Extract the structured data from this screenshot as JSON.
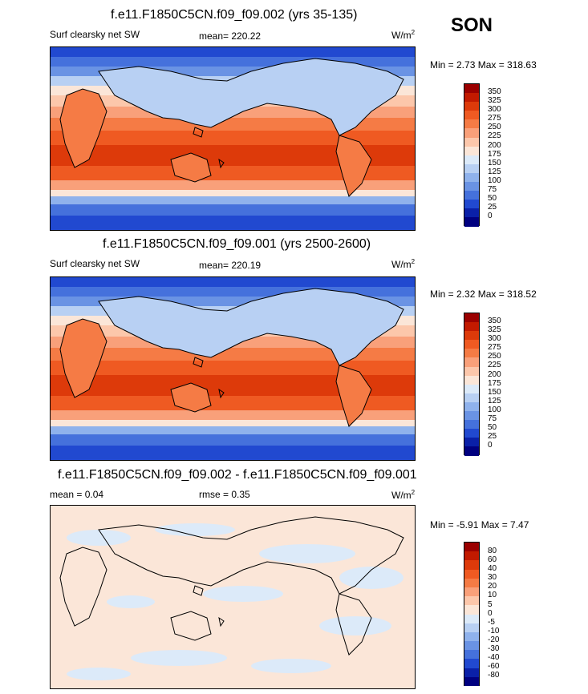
{
  "season": "SON",
  "panels": [
    {
      "title": "f.e11.F1850C5CN.f09_f09.002 (yrs 35-135)",
      "left_label": "Surf clearsky net SW",
      "mean_label": "mean= 220.22",
      "units": "W/m",
      "units_sup": "2",
      "minmax": "Min =  2.73 Max = 318.63",
      "levels": [
        "350",
        "325",
        "300",
        "275",
        "250",
        "225",
        "200",
        "175",
        "150",
        "125",
        "100",
        "75",
        "50",
        "25",
        "0"
      ],
      "colors": [
        "#9b0000",
        "#c21a00",
        "#dd3a0a",
        "#ef5a22",
        "#f57b45",
        "#f9a07a",
        "#fcc7ab",
        "#fbe6d8",
        "#dceaf9",
        "#b8d0f3",
        "#8fb2ec",
        "#6a93e4",
        "#4571dc",
        "#2149d0",
        "#0a20a8",
        "#000080"
      ]
    },
    {
      "title": "f.e11.F1850C5CN.f09_f09.001 (yrs 2500-2600)",
      "left_label": "Surf clearsky net SW",
      "mean_label": "mean= 220.19",
      "units": "W/m",
      "units_sup": "2",
      "minmax": "Min =  2.32 Max = 318.52",
      "levels": [
        "350",
        "325",
        "300",
        "275",
        "250",
        "225",
        "200",
        "175",
        "150",
        "125",
        "100",
        "75",
        "50",
        "25",
        "0"
      ],
      "colors": [
        "#9b0000",
        "#c21a00",
        "#dd3a0a",
        "#ef5a22",
        "#f57b45",
        "#f9a07a",
        "#fcc7ab",
        "#fbe6d8",
        "#dceaf9",
        "#b8d0f3",
        "#8fb2ec",
        "#6a93e4",
        "#4571dc",
        "#2149d0",
        "#0a20a8",
        "#000080"
      ]
    },
    {
      "title": "f.e11.F1850C5CN.f09_f09.002 - f.e11.F1850C5CN.f09_f09.001",
      "left_label": "mean =   0.04",
      "mean_label": "rmse =   0.35",
      "units": "W/m",
      "units_sup": "2",
      "minmax": "Min =  -5.91 Max =   7.47",
      "levels": [
        "80",
        "60",
        "40",
        "30",
        "20",
        "10",
        "5",
        "0",
        "-5",
        "-10",
        "-20",
        "-30",
        "-40",
        "-60",
        "-80"
      ],
      "colors": [
        "#9b0000",
        "#c21a00",
        "#dd3a0a",
        "#ef5a22",
        "#f57b45",
        "#f9a07a",
        "#fcc7ab",
        "#fbe6d8",
        "#dceaf9",
        "#b8d0f3",
        "#8fb2ec",
        "#6a93e4",
        "#4571dc",
        "#2149d0",
        "#0a20a8",
        "#000080"
      ]
    }
  ],
  "chart_data": [
    {
      "type": "heatmap",
      "title": "f.e11.F1850C5CN.f09_f09.002 (yrs 35-135)",
      "variable": "Surf clearsky net SW",
      "mean": 220.22,
      "min": 2.73,
      "max": 318.63,
      "contour_levels": [
        0,
        25,
        50,
        75,
        100,
        125,
        150,
        175,
        200,
        225,
        250,
        275,
        300,
        325,
        350
      ]
    },
    {
      "type": "heatmap",
      "title": "f.e11.F1850C5CN.f09_f09.001 (yrs 2500-2600)",
      "variable": "Surf clearsky net SW",
      "mean": 220.19,
      "min": 2.32,
      "max": 318.52,
      "contour_levels": [
        0,
        25,
        50,
        75,
        100,
        125,
        150,
        175,
        200,
        225,
        250,
        275,
        300,
        325,
        350
      ]
    },
    {
      "type": "heatmap",
      "title": "f.e11.F1850C5CN.f09_f09.002 - f.e11.F1850C5CN.f09_f09.001",
      "mean": 0.04,
      "rmse": 0.35,
      "min": -5.91,
      "max": 7.47,
      "contour_levels": [
        -80,
        -60,
        -40,
        -30,
        -20,
        -10,
        -5,
        0,
        5,
        10,
        20,
        30,
        40,
        60,
        80
      ]
    }
  ]
}
